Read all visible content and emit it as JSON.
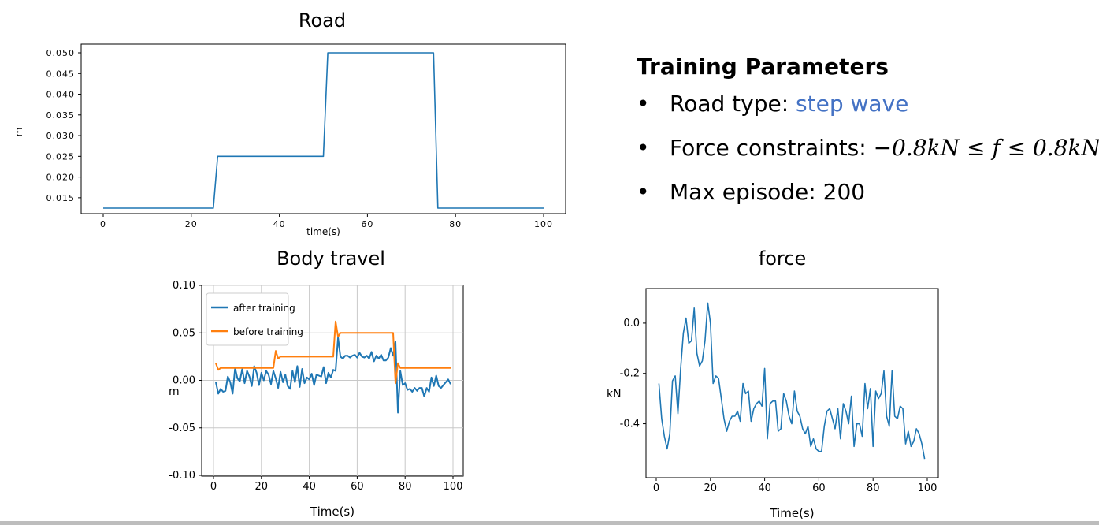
{
  "colors": {
    "road": "#1f77b4",
    "after": "#1f77b4",
    "before": "#ff7f0e",
    "force": "#1f77b4",
    "accent": "#4472c4"
  },
  "panel": {
    "heading": "Training Parameters",
    "items": [
      {
        "label": "Road type: ",
        "value": "step wave"
      },
      {
        "label": "Force constraints: ",
        "value": "−0.8kN ≤ f ≤ 0.8kN"
      },
      {
        "label": "Max episode: ",
        "value": "200"
      }
    ]
  },
  "chart_data": [
    {
      "type": "line",
      "title": "Road",
      "xlabel": "time(s)",
      "ylabel": "m",
      "xlim": [
        0,
        100
      ],
      "ylim": [
        0.0125,
        0.05
      ],
      "xticks": [
        "0",
        "20",
        "40",
        "60",
        "80",
        "100"
      ],
      "yticks": [
        "0.015",
        "0.020",
        "0.025",
        "0.030",
        "0.035",
        "0.040",
        "0.045",
        "0.050"
      ],
      "grid": false,
      "series": [
        {
          "x": [
            0,
            25,
            26,
            50,
            51,
            75,
            76,
            100
          ],
          "y": [
            0.0125,
            0.0125,
            0.025,
            0.025,
            0.05,
            0.05,
            0.0125,
            0.0125
          ]
        }
      ]
    },
    {
      "type": "line",
      "title": "Body travel",
      "xlabel": "Time(s)",
      "ylabel": "m",
      "xlim": [
        0,
        100
      ],
      "ylim": [
        -0.1,
        0.1
      ],
      "xticks": [
        "0",
        "20",
        "40",
        "60",
        "80",
        "100"
      ],
      "yticks": [
        "-0.10",
        "-0.05",
        "0.00",
        "0.05",
        "0.10"
      ],
      "grid": true,
      "legend": "top-left",
      "series": [
        {
          "name": "after training",
          "x": [
            1,
            2,
            3,
            4,
            5,
            6,
            7,
            8,
            9,
            10,
            11,
            12,
            13,
            14,
            15,
            16,
            17,
            18,
            19,
            20,
            21,
            22,
            23,
            24,
            25,
            26,
            27,
            28,
            29,
            30,
            31,
            32,
            33,
            34,
            35,
            36,
            37,
            38,
            39,
            40,
            41,
            42,
            43,
            44,
            45,
            46,
            47,
            48,
            49,
            50,
            51,
            52,
            53,
            54,
            55,
            56,
            57,
            58,
            59,
            60,
            61,
            62,
            63,
            64,
            65,
            66,
            67,
            68,
            69,
            70,
            71,
            72,
            73,
            74,
            75,
            76,
            77,
            78,
            79,
            80,
            81,
            82,
            83,
            84,
            85,
            86,
            87,
            88,
            89,
            90,
            91,
            92,
            93,
            94,
            95,
            96,
            97,
            98,
            99
          ],
          "y": [
            -0.002,
            -0.014,
            -0.009,
            -0.012,
            -0.011,
            0.004,
            -0.002,
            -0.014,
            0.013,
            0.002,
            -0.001,
            0.012,
            -0.003,
            0.01,
            0.004,
            -0.006,
            0.015,
            0.008,
            -0.005,
            0.008,
            0.0,
            0.01,
            0.006,
            -0.004,
            0.01,
            0.002,
            -0.008,
            0.009,
            -0.002,
            0.006,
            -0.006,
            -0.009,
            0.01,
            -0.002,
            0.015,
            -0.007,
            0.012,
            -0.003,
            0.003,
            0.001,
            0.007,
            -0.005,
            0.006,
            0.005,
            0.004,
            0.014,
            -0.003,
            0.008,
            0.003,
            0.011,
            0.01,
            0.045,
            0.025,
            0.023,
            0.026,
            0.026,
            0.024,
            0.026,
            0.027,
            0.024,
            0.029,
            0.025,
            0.024,
            0.026,
            0.023,
            0.03,
            0.02,
            0.026,
            0.023,
            0.027,
            0.021,
            0.021,
            0.024,
            0.034,
            0.026,
            0.041,
            -0.034,
            0.01,
            -0.005,
            -0.003,
            -0.01,
            -0.009,
            -0.012,
            -0.008,
            -0.011,
            -0.008,
            -0.008,
            -0.017,
            -0.008,
            -0.012,
            0.003,
            -0.006,
            0.005,
            -0.006,
            -0.008,
            -0.005,
            -0.002,
            0.001,
            -0.004
          ]
        },
        {
          "name": "before training",
          "x": [
            1,
            2,
            3,
            25,
            26,
            27,
            28,
            50,
            51,
            52,
            53,
            75,
            76,
            77,
            78,
            99
          ],
          "y": [
            0.018,
            0.011,
            0.013,
            0.013,
            0.031,
            0.023,
            0.025,
            0.025,
            0.062,
            0.046,
            0.05,
            0.05,
            -0.003,
            0.018,
            0.013,
            0.013
          ]
        }
      ]
    },
    {
      "type": "line",
      "title": "force",
      "xlabel": "Time(s)",
      "ylabel": "kN",
      "xlim": [
        0,
        100
      ],
      "ylim": [
        -0.58,
        0.1
      ],
      "xticks": [
        "0",
        "20",
        "40",
        "60",
        "80",
        "100"
      ],
      "yticks": [
        "0.0",
        "-0.2",
        "-0.4"
      ],
      "grid": false,
      "series": [
        {
          "x": [
            1,
            2,
            3,
            4,
            5,
            6,
            7,
            8,
            9,
            10,
            11,
            12,
            13,
            14,
            15,
            16,
            17,
            18,
            19,
            20,
            21,
            22,
            23,
            24,
            25,
            26,
            27,
            28,
            29,
            30,
            31,
            32,
            33,
            34,
            35,
            36,
            37,
            38,
            39,
            40,
            41,
            42,
            43,
            44,
            45,
            46,
            47,
            48,
            49,
            50,
            51,
            52,
            53,
            54,
            55,
            56,
            57,
            58,
            59,
            60,
            61,
            62,
            63,
            64,
            65,
            66,
            67,
            68,
            69,
            70,
            71,
            72,
            73,
            74,
            75,
            76,
            77,
            78,
            79,
            80,
            81,
            82,
            83,
            84,
            85,
            86,
            87,
            88,
            89,
            90,
            91,
            92,
            93,
            94,
            95,
            96,
            97,
            98,
            99
          ],
          "y": [
            -0.24,
            -0.38,
            -0.45,
            -0.5,
            -0.44,
            -0.23,
            -0.21,
            -0.36,
            -0.18,
            -0.04,
            0.02,
            -0.08,
            -0.07,
            0.06,
            -0.12,
            -0.17,
            -0.15,
            -0.07,
            0.08,
            0.0,
            -0.24,
            -0.21,
            -0.22,
            -0.3,
            -0.38,
            -0.43,
            -0.39,
            -0.37,
            -0.37,
            -0.35,
            -0.39,
            -0.24,
            -0.28,
            -0.27,
            -0.39,
            -0.34,
            -0.32,
            -0.31,
            -0.33,
            -0.18,
            -0.46,
            -0.32,
            -0.31,
            -0.31,
            -0.43,
            -0.42,
            -0.28,
            -0.31,
            -0.37,
            -0.4,
            -0.27,
            -0.35,
            -0.37,
            -0.42,
            -0.44,
            -0.41,
            -0.49,
            -0.46,
            -0.5,
            -0.51,
            -0.51,
            -0.41,
            -0.35,
            -0.34,
            -0.38,
            -0.42,
            -0.34,
            -0.46,
            -0.32,
            -0.35,
            -0.4,
            -0.29,
            -0.49,
            -0.4,
            -0.4,
            -0.45,
            -0.24,
            -0.34,
            -0.26,
            -0.49,
            -0.27,
            -0.3,
            -0.28,
            -0.19,
            -0.37,
            -0.41,
            -0.19,
            -0.37,
            -0.38,
            -0.33,
            -0.34,
            -0.48,
            -0.43,
            -0.49,
            -0.47,
            -0.42,
            -0.44,
            -0.48,
            -0.54
          ]
        }
      ]
    }
  ]
}
